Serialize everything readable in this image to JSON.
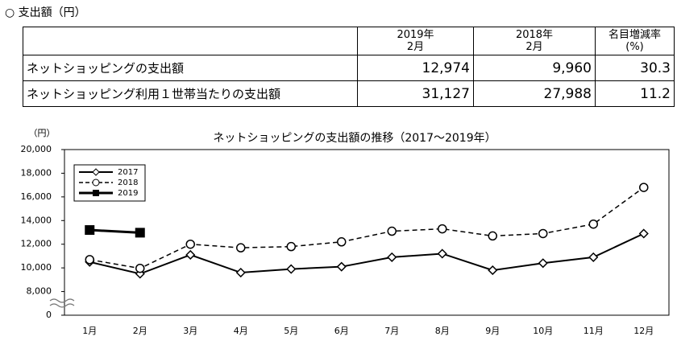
{
  "heading": "○ 支出額（円）",
  "table": {
    "header": [
      [
        "2019年",
        "2月"
      ],
      [
        "2018年",
        "2月"
      ],
      [
        "名目増減率",
        "(%)"
      ]
    ],
    "rows": [
      [
        "ネットショッピングの支出額",
        "12,974",
        "9,960",
        "30.3"
      ],
      [
        "ネットショッピング利用１世帯当たりの支出額",
        "31,127",
        "27,988",
        "11.2"
      ]
    ]
  },
  "chart_data": {
    "type": "line",
    "title": "ネットショッピングの支出額の推移（2017～2019年）",
    "y_label": "（円）",
    "categories": [
      "1月",
      "2月",
      "3月",
      "4月",
      "5月",
      "6月",
      "7月",
      "8月",
      "9月",
      "10月",
      "11月",
      "12月"
    ],
    "series": [
      {
        "name": "2017",
        "color": "#000000",
        "dash": false,
        "marker": "diamond",
        "width": 2,
        "values": [
          10500,
          9500,
          11100,
          9600,
          9900,
          10100,
          10900,
          11200,
          9800,
          10400,
          10900,
          12900
        ]
      },
      {
        "name": "2018",
        "color": "#000000",
        "dash": true,
        "marker": "circle",
        "width": 1.5,
        "values": [
          10700,
          9960,
          12000,
          11700,
          11800,
          12200,
          13100,
          13300,
          12700,
          12900,
          13700,
          16800
        ]
      },
      {
        "name": "2019",
        "color": "#000000",
        "dash": false,
        "marker": "square",
        "width": 3,
        "values": [
          13200,
          12974,
          null,
          null,
          null,
          null,
          null,
          null,
          null,
          null,
          null,
          null
        ]
      }
    ],
    "ylim": [
      6000,
      20000
    ],
    "y_break": true,
    "yticks": [
      {
        "value": 0,
        "label": "0"
      },
      {
        "value": 8000,
        "label": "8,000"
      },
      {
        "value": 10000,
        "label": "10,000"
      },
      {
        "value": 12000,
        "label": "12,000"
      },
      {
        "value": 14000,
        "label": "14,000"
      },
      {
        "value": 16000,
        "label": "16,000"
      },
      {
        "value": 18000,
        "label": "18,000"
      },
      {
        "value": 20000,
        "label": "20,000"
      }
    ],
    "legend": "top-left"
  }
}
